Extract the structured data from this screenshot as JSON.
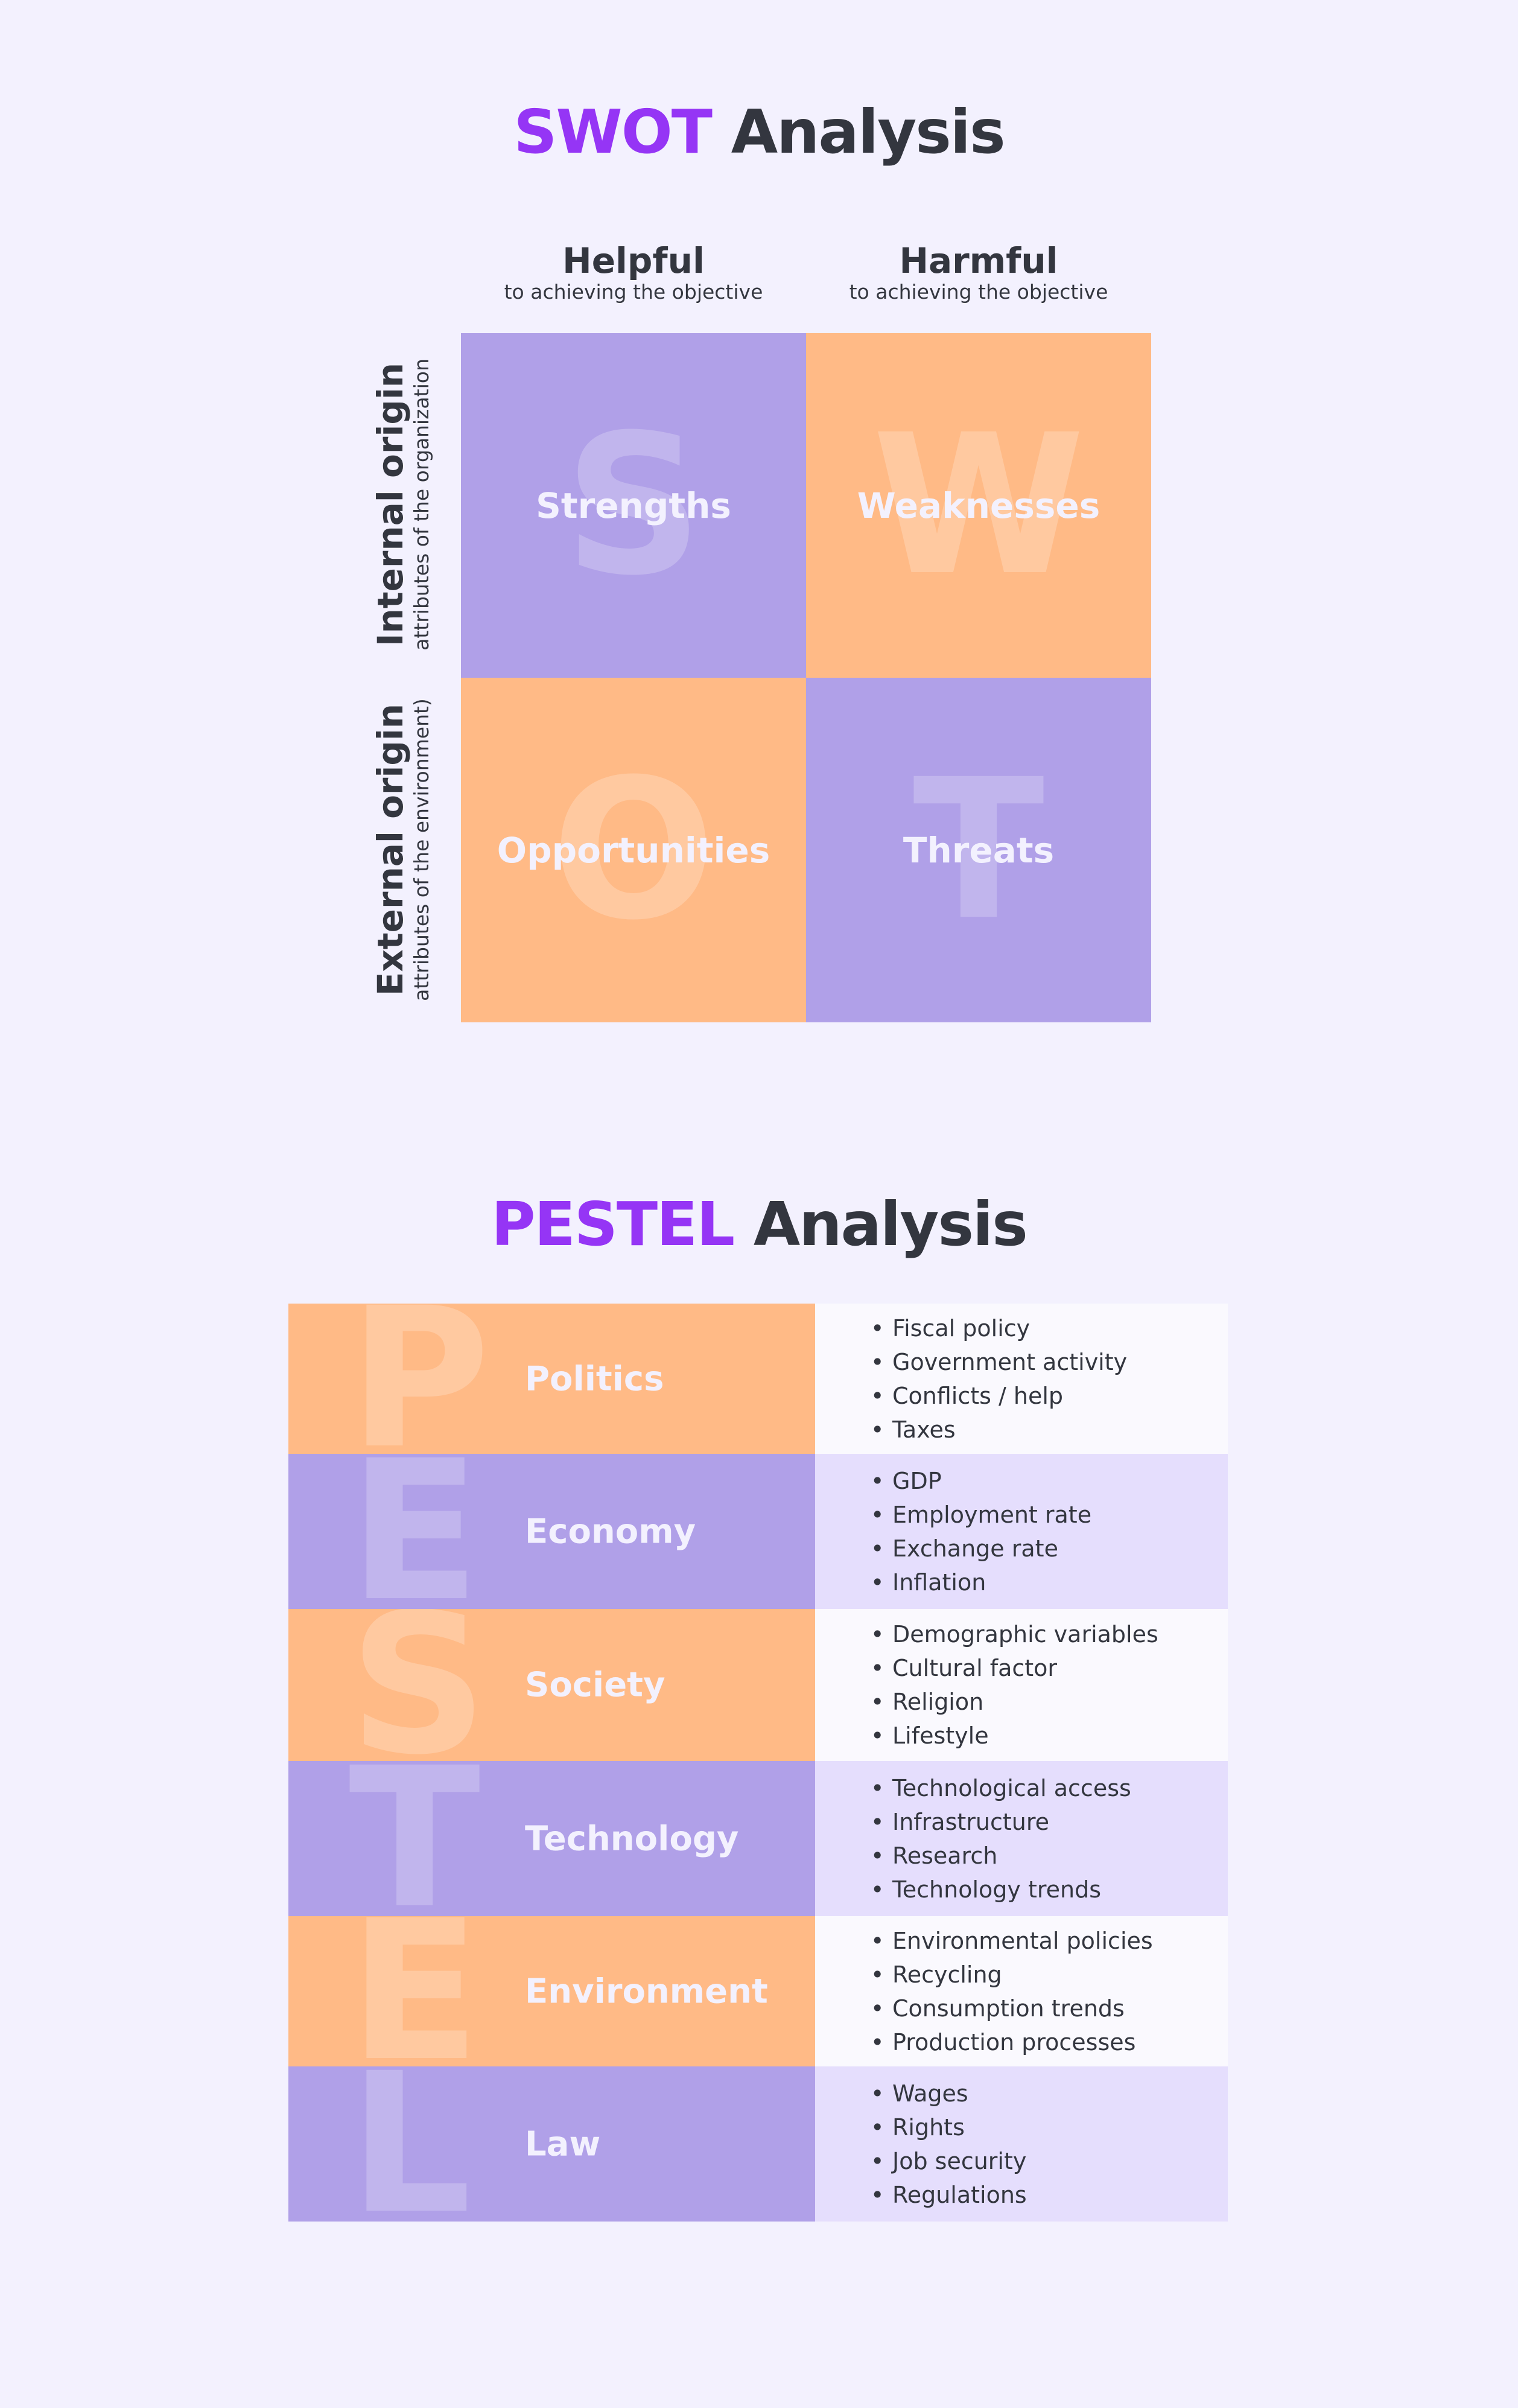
{
  "swot": {
    "title_accent": "SWOT",
    "title_rest": "Analysis",
    "columns": [
      {
        "heading": "Helpful",
        "subheading": "to achieving the objective"
      },
      {
        "heading": "Harmful",
        "subheading": "to achieving the objective"
      }
    ],
    "rows": [
      {
        "heading": "Internal origin",
        "subheading": "attributes of the organization"
      },
      {
        "heading": "External origin",
        "subheading": "attributes of the environment)"
      }
    ],
    "cells": [
      {
        "letter": "S",
        "label": "Strengths"
      },
      {
        "letter": "W",
        "label": "Weaknesses"
      },
      {
        "letter": "O",
        "label": "Opportunities"
      },
      {
        "letter": "T",
        "label": "Threats"
      }
    ]
  },
  "pestel": {
    "title_accent": "PESTEL",
    "title_rest": "Analysis",
    "bullet": "•",
    "rows": [
      {
        "letter": "P",
        "label": "Politics",
        "items": [
          "Fiscal policy",
          "Government activity",
          "Conflicts / help",
          "Taxes"
        ]
      },
      {
        "letter": "E",
        "label": "Economy",
        "items": [
          "GDP",
          "Employment rate",
          "Exchange rate",
          "Inflation"
        ]
      },
      {
        "letter": "S",
        "label": "Society",
        "items": [
          "Demographic variables",
          "Cultural factor",
          "Religion",
          "Lifestyle"
        ]
      },
      {
        "letter": "T",
        "label": "Technology",
        "items": [
          "Technological access",
          "Infrastructure",
          "Research",
          "Technology trends"
        ]
      },
      {
        "letter": "E",
        "label": "Environment",
        "items": [
          "Environmental policies",
          "Recycling",
          "Consumption trends",
          "Production processes"
        ]
      },
      {
        "letter": "L",
        "label": "Law",
        "items": [
          "Wages",
          "Rights",
          "Job security",
          "Regulations"
        ]
      }
    ]
  },
  "colors": {
    "accent": "#9535F5",
    "text": "#33363F",
    "purple": "#B0A0E8",
    "orange": "#FFBA86",
    "background": "#F3F1FE"
  }
}
